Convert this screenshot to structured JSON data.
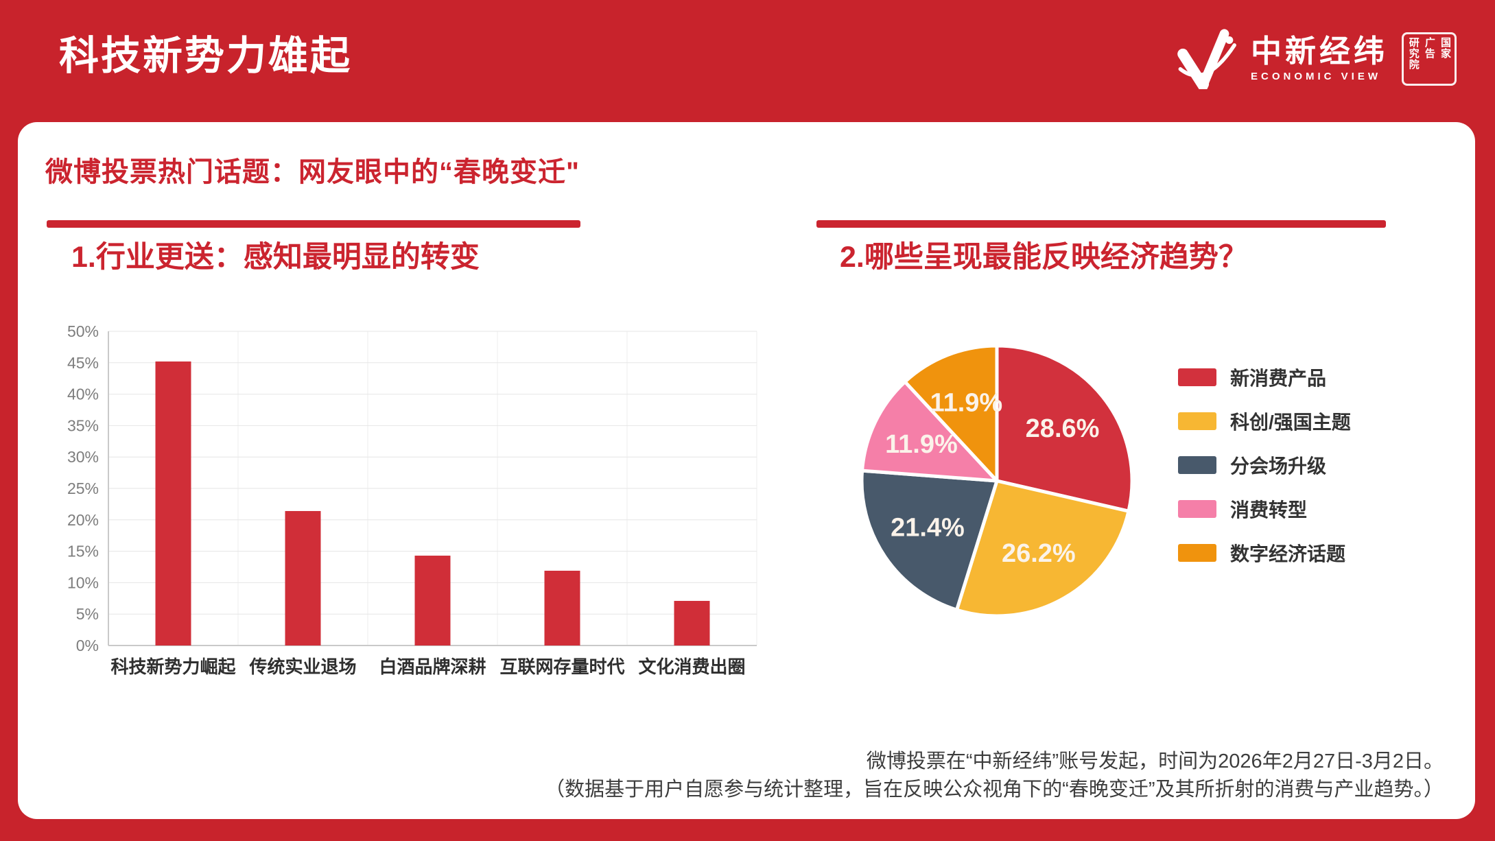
{
  "header": {
    "title": "科技新势力雄起",
    "brand": {
      "name_cn": "中新经纬",
      "name_en": "ECONOMIC VIEW",
      "seal": [
        "国家",
        "广告",
        "研究院"
      ]
    }
  },
  "subtitle": "微博投票热门话题：网友眼中的“春晚变迁\"",
  "sections": {
    "left_heading": "1.行业更送：感知最明显的转变",
    "right_heading": "2.哪些呈现最能反映经济趋势？"
  },
  "chart_data": [
    {
      "type": "bar",
      "title": "1.行业更送：感知最明显的转变",
      "categories": [
        "科技新势力崛起",
        "传统实业退场",
        "白酒品牌深耕",
        "互联网存量时代",
        "文化消费出圈"
      ],
      "values": [
        45.2,
        21.4,
        14.3,
        11.9,
        7.1
      ],
      "xlabel": "",
      "ylabel": "",
      "ylim": [
        0,
        50
      ],
      "ytick_step": 5,
      "ytick_format": "percent",
      "grid": true,
      "bar_color": "#d02e38"
    },
    {
      "type": "pie",
      "title": "2.哪些呈现最能反映经济趋势？",
      "labels": [
        "新消费产品",
        "科创/强国主题",
        "分会场升级",
        "消费转型",
        "数字经济话题"
      ],
      "values": [
        28.6,
        26.2,
        21.4,
        11.9,
        11.9
      ],
      "colors": [
        "#d2313d",
        "#f7b733",
        "#48596b",
        "#f57fa8",
        "#f0930d"
      ],
      "label_format": "percent_1dp",
      "legend_position": "right",
      "start_angle_deg": -90,
      "direction": "clockwise"
    }
  ],
  "footer": {
    "line1": "微博投票在“中新经纬”账号发起，时间为2026年2月27日-3月2日。",
    "line2": "（数据基于用户自愿参与统计整理，旨在反映公众视角下的“春晚变迁”及其所折射的消费与产业趋势。）"
  },
  "colors": {
    "background_red": "#c8232c",
    "accent_red": "#cb242f",
    "card_white": "#ffffff"
  }
}
